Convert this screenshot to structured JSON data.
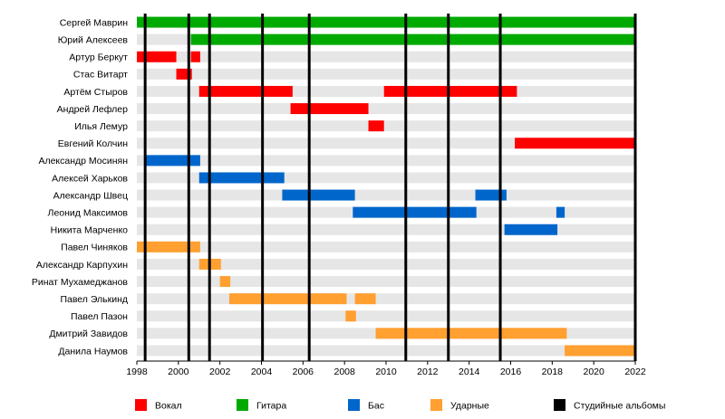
{
  "chart_data": {
    "type": "timeline",
    "xlim": [
      1998,
      2022
    ],
    "x_ticks": [
      "1998",
      "2000",
      "2002",
      "2004",
      "2006",
      "2008",
      "2010",
      "2012",
      "2014",
      "2016",
      "2018",
      "2020",
      "2022"
    ],
    "colors": {
      "Вокал": "#ff0000",
      "Гитара": "#00aa00",
      "Бас": "#0066cc",
      "Ударные": "#ffa030",
      "Студийные альбомы": "#000000",
      "row_band": "#e6e6e6"
    },
    "members": [
      {
        "name": "Сергей Маврин",
        "periods": [
          {
            "role": "Гитара",
            "start": 1998.0,
            "end": 2022.1
          }
        ]
      },
      {
        "name": "Юрий Алексеев",
        "periods": [
          {
            "role": "Гитара",
            "start": 2000.6,
            "end": 2022.1
          }
        ]
      },
      {
        "name": "Артур Беркут",
        "periods": [
          {
            "role": "Вокал",
            "start": 1998.0,
            "end": 1999.9
          },
          {
            "role": "Вокал",
            "start": 2000.6,
            "end": 2001.05
          }
        ]
      },
      {
        "name": "Стас Витарт",
        "periods": [
          {
            "role": "Вокал",
            "start": 1999.9,
            "end": 2000.65
          }
        ]
      },
      {
        "name": "Артём Стыров",
        "periods": [
          {
            "role": "Вокал",
            "start": 2001.0,
            "end": 2005.5
          },
          {
            "role": "Вокал",
            "start": 2009.9,
            "end": 2016.3
          }
        ]
      },
      {
        "name": "Андрей Лефлер",
        "periods": [
          {
            "role": "Вокал",
            "start": 2005.4,
            "end": 2009.15
          }
        ]
      },
      {
        "name": "Илья Лемур",
        "periods": [
          {
            "role": "Вокал",
            "start": 2009.15,
            "end": 2009.9
          }
        ]
      },
      {
        "name": "Евгений Колчин",
        "periods": [
          {
            "role": "Вокал",
            "start": 2016.2,
            "end": 2022.1
          }
        ]
      },
      {
        "name": "Александр Мосинян",
        "periods": [
          {
            "role": "Бас",
            "start": 1998.45,
            "end": 2001.05
          }
        ]
      },
      {
        "name": "Алексей Харьков",
        "periods": [
          {
            "role": "Бас",
            "start": 2001.0,
            "end": 2005.1
          }
        ]
      },
      {
        "name": "Александр Швец",
        "periods": [
          {
            "role": "Бас",
            "start": 2005.0,
            "end": 2008.5
          },
          {
            "role": "Бас",
            "start": 2014.3,
            "end": 2015.8
          }
        ]
      },
      {
        "name": "Леонид Максимов",
        "periods": [
          {
            "role": "Бас",
            "start": 2008.4,
            "end": 2014.35
          },
          {
            "role": "Бас",
            "start": 2018.2,
            "end": 2018.6
          }
        ]
      },
      {
        "name": "Никита Марченко",
        "periods": [
          {
            "role": "Бас",
            "start": 2015.7,
            "end": 2018.25
          }
        ]
      },
      {
        "name": "Павел Чиняков",
        "periods": [
          {
            "role": "Ударные",
            "start": 1998.0,
            "end": 2001.05
          }
        ]
      },
      {
        "name": "Александр Карпухин",
        "periods": [
          {
            "role": "Ударные",
            "start": 2001.0,
            "end": 2002.05
          }
        ]
      },
      {
        "name": "Ринат Мухамеджанов",
        "periods": [
          {
            "role": "Ударные",
            "start": 2002.0,
            "end": 2002.5
          }
        ]
      },
      {
        "name": "Павел Элькинд",
        "periods": [
          {
            "role": "Ударные",
            "start": 2002.45,
            "end": 2008.1
          },
          {
            "role": "Ударные",
            "start": 2008.5,
            "end": 2009.5
          }
        ]
      },
      {
        "name": "Павел Пазон",
        "periods": [
          {
            "role": "Ударные",
            "start": 2008.05,
            "end": 2008.55
          }
        ]
      },
      {
        "name": "Дмитрий Завидов",
        "periods": [
          {
            "role": "Ударные",
            "start": 2009.5,
            "end": 2018.7
          }
        ]
      },
      {
        "name": "Данила Наумов",
        "periods": [
          {
            "role": "Ударные",
            "start": 2018.6,
            "end": 2022.1
          }
        ]
      }
    ],
    "album_years": [
      1998.4,
      2000.5,
      2001.5,
      2004.05,
      2006.3,
      2010.95,
      2013.0,
      2015.5,
      2022.0
    ],
    "legend": [
      "Вокал",
      "Гитара",
      "Бас",
      "Ударные",
      "Студийные альбомы"
    ]
  }
}
